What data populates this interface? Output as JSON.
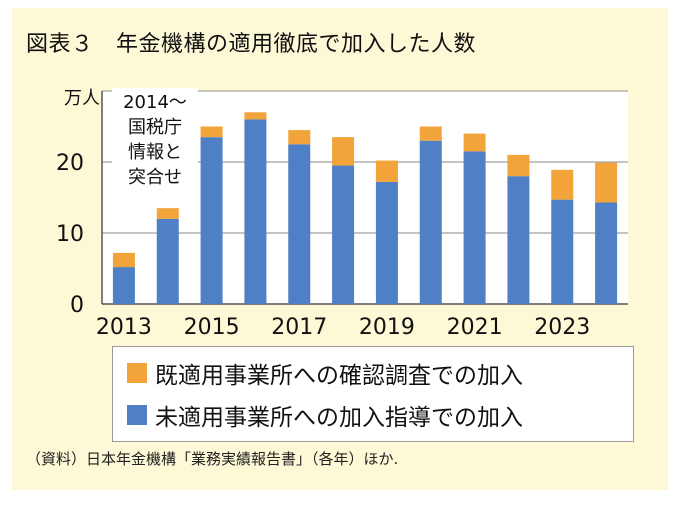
{
  "title": "図表３　年金機構の適用徹底で加入した人数",
  "chart_data": {
    "type": "bar",
    "stacked": true,
    "title": "図表３　年金機構の適用徹底で加入した人数",
    "ylabel": "万人",
    "ylim": [
      0,
      30
    ],
    "yticks": [
      0,
      10,
      20
    ],
    "grid": true,
    "x": [
      2013,
      2014,
      2015,
      2016,
      2017,
      2018,
      2019,
      2020,
      2021,
      2022,
      2023,
      2024
    ],
    "xtick_labels": [
      "2013",
      "2015",
      "2017",
      "2019",
      "2021",
      "2023"
    ],
    "series": [
      {
        "name": "未適用事業所への加入指導での加入",
        "color": "#4f7fc4",
        "values": [
          5.2,
          12.0,
          23.5,
          26.0,
          22.5,
          19.5,
          17.2,
          23.0,
          21.5,
          18.0,
          14.7,
          14.3
        ]
      },
      {
        "name": "既適用事業所への確認調査での加入",
        "color": "#f2a33a",
        "values": [
          2.0,
          1.5,
          1.5,
          1.0,
          2.0,
          4.0,
          3.0,
          2.0,
          2.5,
          3.0,
          4.2,
          5.6
        ]
      }
    ],
    "annotation": [
      "2014～",
      "国税庁",
      "情報と",
      "突合せ"
    ],
    "legend": [
      {
        "label": "既適用事業所への確認調査での加入",
        "color": "#f2a33a"
      },
      {
        "label": "未適用事業所への加入指導での加入",
        "color": "#4f7fc4"
      }
    ]
  },
  "source": "（資料）日本年金機構「業務実績報告書」（各年）ほか."
}
